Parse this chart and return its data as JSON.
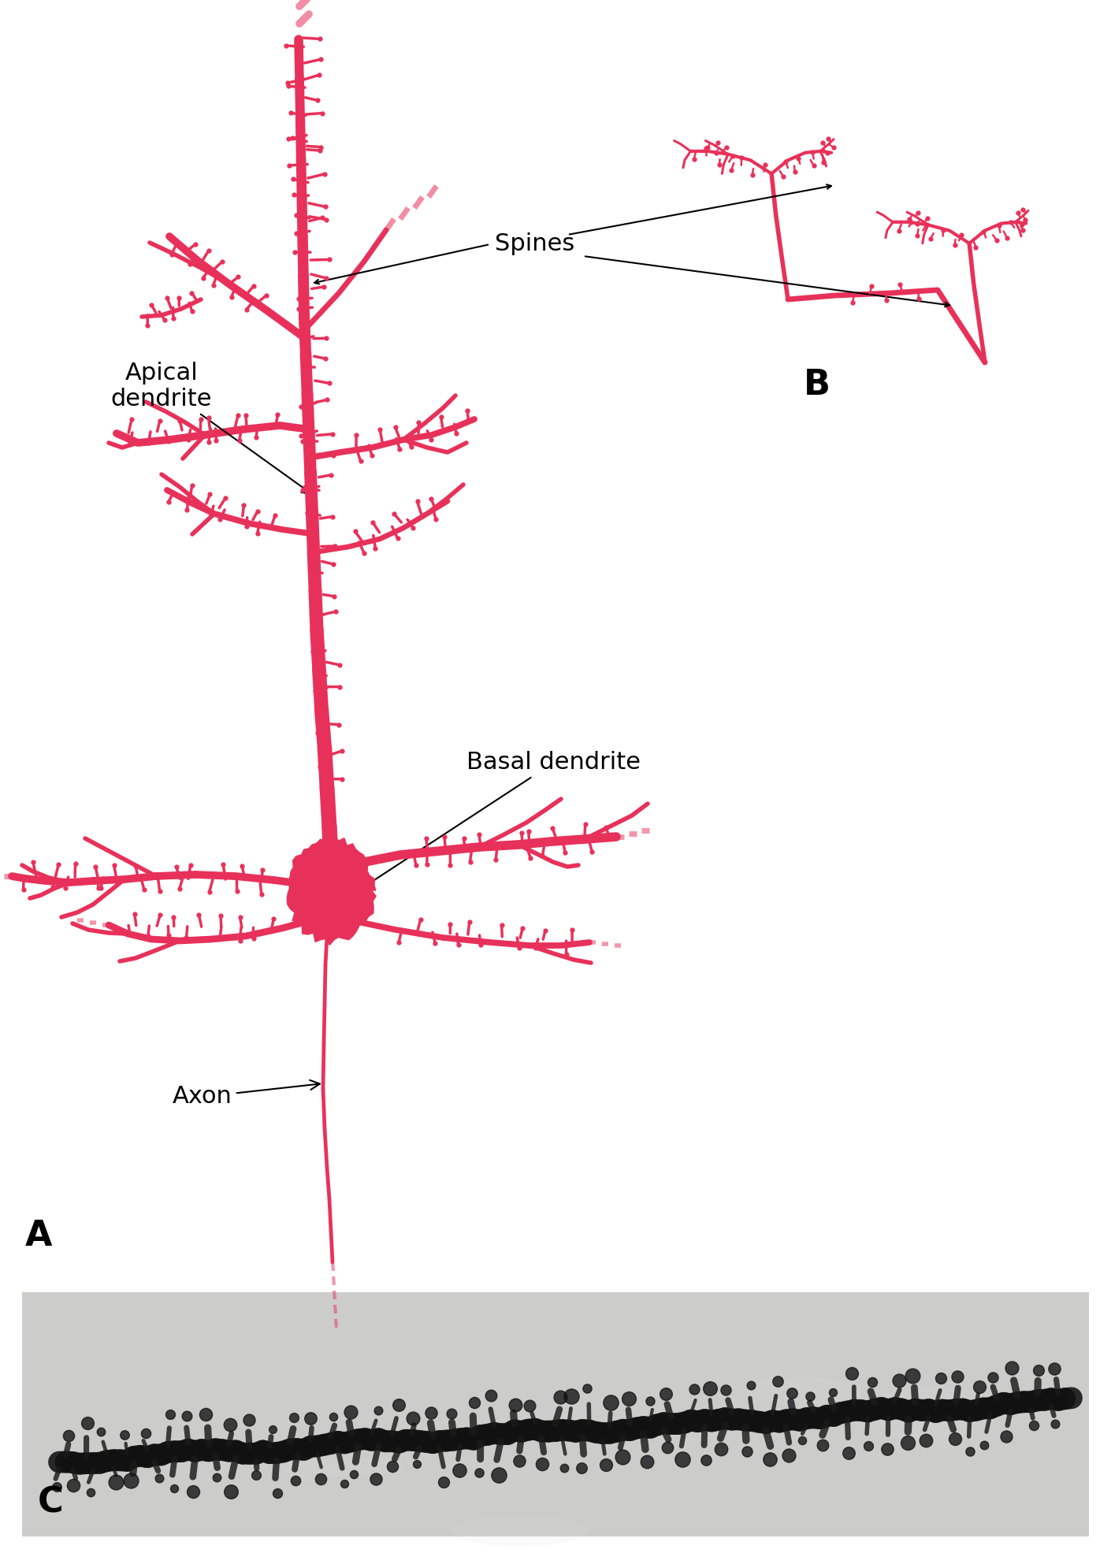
{
  "bg_color": "#FFFFFF",
  "neuron_color": "#E8315A",
  "text_color": "#000000",
  "photo_bg": "#C8C8C4",
  "fig_width": 14.1,
  "fig_height": 19.71,
  "label_apical": "Apical\ndendrite",
  "label_basal": "Basal dendrite",
  "label_axon": "Axon",
  "label_spines": "Spines",
  "panel_A": "A",
  "panel_B": "B",
  "panel_C": "C"
}
